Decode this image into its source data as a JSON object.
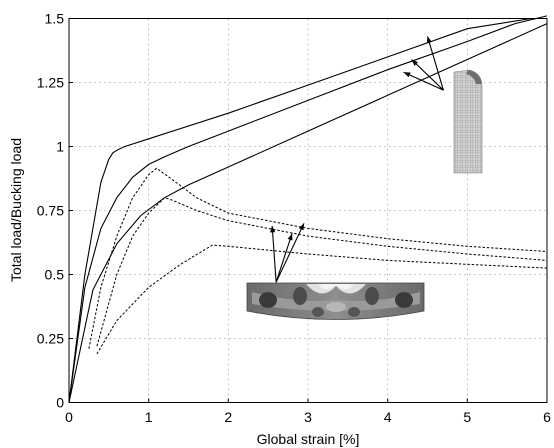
{
  "chart_data": {
    "type": "line",
    "xlabel": "Global strain [%]",
    "ylabel": "Total load/Bucking load",
    "xlim": [
      0,
      6
    ],
    "ylim": [
      0,
      1.5
    ],
    "x_ticks": [
      0,
      1,
      2,
      3,
      4,
      5,
      6
    ],
    "x_tick_labels": [
      "0",
      "1",
      "2",
      "3",
      "4",
      "5",
      "6"
    ],
    "y_ticks": [
      0,
      0.25,
      0.5,
      0.75,
      1,
      1.25,
      1.5
    ],
    "y_tick_labels": [
      "0",
      "0.25",
      "0.5",
      "0.75",
      "1",
      "1.25",
      "1.5"
    ],
    "grid": true,
    "series": [
      {
        "style": "solid",
        "x": [
          0,
          0.2,
          0.4,
          0.5,
          0.55,
          0.6,
          0.7,
          1.0,
          2.0,
          3.0,
          4.0,
          5.0,
          5.8
        ],
        "y": [
          0,
          0.5,
          0.86,
          0.95,
          0.975,
          0.985,
          1.0,
          1.03,
          1.13,
          1.24,
          1.35,
          1.46,
          1.5
        ]
      },
      {
        "style": "solid",
        "x": [
          0,
          0.2,
          0.4,
          0.6,
          0.8,
          1.0,
          1.2,
          1.5,
          2.0,
          3.0,
          4.0,
          5.0,
          5.6,
          6.0
        ],
        "y": [
          0,
          0.45,
          0.68,
          0.8,
          0.88,
          0.93,
          0.96,
          1.0,
          1.06,
          1.18,
          1.3,
          1.41,
          1.48,
          1.51
        ]
      },
      {
        "style": "solid",
        "x": [
          0,
          0.3,
          0.6,
          0.9,
          1.2,
          1.5,
          2.0,
          3.0,
          4.0,
          5.0,
          6.0
        ],
        "y": [
          0,
          0.44,
          0.62,
          0.73,
          0.8,
          0.85,
          0.92,
          1.06,
          1.2,
          1.34,
          1.48
        ]
      },
      {
        "style": "dashed",
        "x": [
          0.25,
          0.4,
          0.6,
          0.8,
          1.0,
          1.1,
          1.3,
          1.6,
          2.0,
          3.0,
          4.0,
          5.0,
          6.0
        ],
        "y": [
          0.21,
          0.45,
          0.65,
          0.8,
          0.89,
          0.915,
          0.87,
          0.8,
          0.74,
          0.68,
          0.64,
          0.61,
          0.59
        ]
      },
      {
        "style": "dashed",
        "x": [
          0.35,
          0.6,
          0.8,
          1.0,
          1.2,
          1.3,
          1.6,
          2.0,
          3.0,
          4.0,
          5.0,
          6.0
        ],
        "y": [
          0.22,
          0.5,
          0.65,
          0.74,
          0.8,
          0.79,
          0.75,
          0.71,
          0.65,
          0.61,
          0.58,
          0.555
        ]
      },
      {
        "style": "dashed",
        "x": [
          0.35,
          0.6,
          1.0,
          1.4,
          1.8,
          2.0,
          3.0,
          4.0,
          5.0,
          6.0
        ],
        "y": [
          0.19,
          0.32,
          0.45,
          0.54,
          0.615,
          0.61,
          0.58,
          0.555,
          0.54,
          0.525
        ]
      }
    ],
    "annotations": [
      {
        "target": "solid curves",
        "arrow_tail": [
          4.7,
          1.22
        ],
        "arrow_heads": [
          [
            4.5,
            1.43
          ],
          [
            4.3,
            1.34
          ],
          [
            4.2,
            1.29
          ]
        ],
        "inset": "column mesh image"
      },
      {
        "target": "dashed curves",
        "arrow_tail": [
          2.6,
          0.47
        ],
        "arrow_heads": [
          [
            2.55,
            0.69
          ],
          [
            2.8,
            0.66
          ],
          [
            2.95,
            0.7
          ]
        ],
        "inset": "buckled panel contour image"
      }
    ]
  }
}
